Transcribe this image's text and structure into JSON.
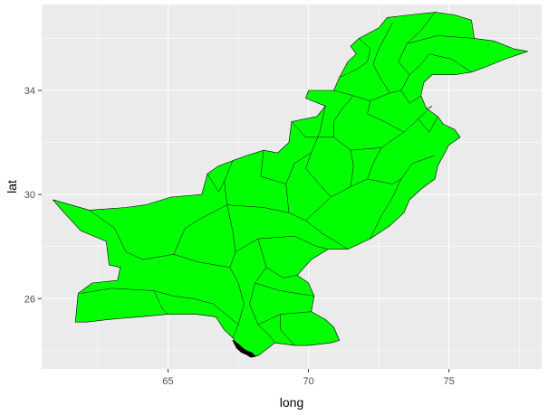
{
  "chart_data": {
    "type": "map",
    "geometry": "polygon (geom_polygon of Pakistan administrative regions)",
    "xlabel": "long",
    "ylabel": "lat",
    "xlim": [
      60.5,
      78.3
    ],
    "ylim": [
      23.3,
      37.3
    ],
    "x_ticks": [
      65,
      70,
      75
    ],
    "y_ticks": [
      26,
      30,
      34
    ],
    "x_tick_labels": [
      "65",
      "70",
      "75"
    ],
    "y_tick_labels": [
      "26",
      "30",
      "34"
    ],
    "grid": true,
    "panel_background": "#ebebeb",
    "fill_color": "#00ff00",
    "border_color": "#000000",
    "outline": [
      [
        60.9,
        29.8
      ],
      [
        62.2,
        29.4
      ],
      [
        63.5,
        29.5
      ],
      [
        64.2,
        29.6
      ],
      [
        65.1,
        29.9
      ],
      [
        66.2,
        30.0
      ],
      [
        66.4,
        30.8
      ],
      [
        66.8,
        31.1
      ],
      [
        67.3,
        31.3
      ],
      [
        67.8,
        31.5
      ],
      [
        68.4,
        31.7
      ],
      [
        68.9,
        31.6
      ],
      [
        69.3,
        32.0
      ],
      [
        69.4,
        32.8
      ],
      [
        70.3,
        33.0
      ],
      [
        70.6,
        33.4
      ],
      [
        69.9,
        33.7
      ],
      [
        70.0,
        34.0
      ],
      [
        70.9,
        34.0
      ],
      [
        71.1,
        34.5
      ],
      [
        71.4,
        35.1
      ],
      [
        71.7,
        35.4
      ],
      [
        71.5,
        35.7
      ],
      [
        71.8,
        36.0
      ],
      [
        72.5,
        36.4
      ],
      [
        72.8,
        36.8
      ],
      [
        73.6,
        36.9
      ],
      [
        74.5,
        37.0
      ],
      [
        75.2,
        36.9
      ],
      [
        75.8,
        36.7
      ],
      [
        75.9,
        36.0
      ],
      [
        76.6,
        35.9
      ],
      [
        77.3,
        35.6
      ],
      [
        77.8,
        35.5
      ],
      [
        77.0,
        35.2
      ],
      [
        76.3,
        34.9
      ],
      [
        75.8,
        34.7
      ],
      [
        75.2,
        34.6
      ],
      [
        74.4,
        34.6
      ],
      [
        74.1,
        34.3
      ],
      [
        74.0,
        33.8
      ],
      [
        74.2,
        33.3
      ],
      [
        74.6,
        33.0
      ],
      [
        74.8,
        32.7
      ],
      [
        75.2,
        32.5
      ],
      [
        75.4,
        32.2
      ],
      [
        75.0,
        31.9
      ],
      [
        74.8,
        31.5
      ],
      [
        74.6,
        31.1
      ],
      [
        74.5,
        30.6
      ],
      [
        74.0,
        30.2
      ],
      [
        73.6,
        29.8
      ],
      [
        73.4,
        29.3
      ],
      [
        72.9,
        28.8
      ],
      [
        72.2,
        28.3
      ],
      [
        71.4,
        27.9
      ],
      [
        70.7,
        27.9
      ],
      [
        70.1,
        27.5
      ],
      [
        69.6,
        26.9
      ],
      [
        70.0,
        26.6
      ],
      [
        70.2,
        26.1
      ],
      [
        70.1,
        25.5
      ],
      [
        70.6,
        25.2
      ],
      [
        70.9,
        24.9
      ],
      [
        71.1,
        24.4
      ],
      [
        70.8,
        24.3
      ],
      [
        70.0,
        24.2
      ],
      [
        69.5,
        24.2
      ],
      [
        68.8,
        24.3
      ],
      [
        68.2,
        23.8
      ],
      [
        67.9,
        23.8
      ],
      [
        67.6,
        24.0
      ],
      [
        67.3,
        24.5
      ],
      [
        67.0,
        24.8
      ],
      [
        66.7,
        25.3
      ],
      [
        66.0,
        25.4
      ],
      [
        65.0,
        25.4
      ],
      [
        64.0,
        25.3
      ],
      [
        62.9,
        25.2
      ],
      [
        62.1,
        25.1
      ],
      [
        61.7,
        25.1
      ],
      [
        61.8,
        26.2
      ],
      [
        62.3,
        26.6
      ],
      [
        63.2,
        26.7
      ],
      [
        63.3,
        27.2
      ],
      [
        62.9,
        27.3
      ],
      [
        62.8,
        28.2
      ],
      [
        61.9,
        28.6
      ],
      [
        61.3,
        29.3
      ],
      [
        60.9,
        29.8
      ]
    ],
    "coast_detail": [
      [
        67.3,
        24.4
      ],
      [
        67.45,
        24.1
      ],
      [
        67.6,
        23.95
      ],
      [
        67.8,
        23.85
      ],
      [
        67.95,
        23.75
      ],
      [
        68.1,
        23.78
      ],
      [
        68.0,
        23.9
      ],
      [
        67.7,
        24.05
      ],
      [
        67.5,
        24.25
      ],
      [
        67.3,
        24.4
      ]
    ],
    "internal_borders": [
      [
        [
          67.3,
          31.3
        ],
        [
          67.0,
          30.5
        ],
        [
          67.1,
          29.6
        ],
        [
          67.3,
          28.6
        ],
        [
          67.4,
          27.8
        ],
        [
          67.2,
          27.2
        ],
        [
          67.5,
          26.6
        ],
        [
          67.7,
          25.8
        ],
        [
          67.5,
          25.0
        ],
        [
          67.3,
          24.5
        ]
      ],
      [
        [
          67.4,
          27.8
        ],
        [
          68.2,
          28.3
        ],
        [
          69.5,
          28.4
        ],
        [
          70.3,
          28.0
        ],
        [
          70.7,
          27.9
        ]
      ],
      [
        [
          67.1,
          29.6
        ],
        [
          68.4,
          29.5
        ],
        [
          69.3,
          29.3
        ],
        [
          69.9,
          29.0
        ],
        [
          70.5,
          28.5
        ],
        [
          71.4,
          27.9
        ]
      ],
      [
        [
          69.3,
          29.3
        ],
        [
          69.2,
          30.4
        ],
        [
          69.5,
          31.2
        ],
        [
          70.1,
          31.6
        ],
        [
          70.4,
          32.4
        ],
        [
          70.6,
          33.4
        ]
      ],
      [
        [
          69.4,
          32.8
        ],
        [
          69.9,
          32.2
        ],
        [
          70.9,
          32.2
        ],
        [
          71.5,
          31.7
        ],
        [
          72.6,
          31.8
        ],
        [
          73.4,
          32.4
        ],
        [
          73.9,
          32.9
        ],
        [
          74.4,
          33.4
        ],
        [
          74.2,
          33.3
        ]
      ],
      [
        [
          70.9,
          34.0
        ],
        [
          71.6,
          33.8
        ],
        [
          72.2,
          33.6
        ],
        [
          72.9,
          33.9
        ],
        [
          73.3,
          34.0
        ],
        [
          73.6,
          34.6
        ],
        [
          74.0,
          35.0
        ],
        [
          74.3,
          35.4
        ],
        [
          75.1,
          35.2
        ],
        [
          75.8,
          34.7
        ]
      ],
      [
        [
          72.2,
          28.3
        ],
        [
          72.6,
          29.2
        ],
        [
          73.0,
          29.9
        ],
        [
          73.3,
          30.6
        ],
        [
          73.7,
          31.2
        ],
        [
          74.5,
          31.5
        ]
      ],
      [
        [
          62.2,
          29.4
        ],
        [
          63.1,
          28.7
        ],
        [
          63.5,
          27.8
        ],
        [
          64.1,
          27.5
        ],
        [
          65.2,
          27.7
        ],
        [
          66.1,
          27.4
        ],
        [
          67.2,
          27.2
        ]
      ],
      [
        [
          61.9,
          26.2
        ],
        [
          63.0,
          26.4
        ],
        [
          64.5,
          26.3
        ],
        [
          65.2,
          26.1
        ],
        [
          65.9,
          26.0
        ],
        [
          66.6,
          25.8
        ],
        [
          67.5,
          25.0
        ]
      ],
      [
        [
          65.2,
          27.7
        ],
        [
          65.6,
          28.7
        ],
        [
          66.2,
          29.1
        ],
        [
          67.1,
          29.6
        ]
      ],
      [
        [
          64.5,
          26.3
        ],
        [
          64.8,
          25.6
        ],
        [
          65.0,
          25.4
        ]
      ],
      [
        [
          68.2,
          28.3
        ],
        [
          68.5,
          27.2
        ],
        [
          68.1,
          26.6
        ],
        [
          67.9,
          25.8
        ],
        [
          68.2,
          25.0
        ],
        [
          68.6,
          24.6
        ],
        [
          68.8,
          24.3
        ]
      ],
      [
        [
          68.5,
          27.2
        ],
        [
          69.1,
          26.8
        ],
        [
          69.6,
          26.9
        ]
      ],
      [
        [
          68.1,
          26.6
        ],
        [
          69.0,
          26.3
        ],
        [
          70.2,
          26.1
        ]
      ],
      [
        [
          68.2,
          25.0
        ],
        [
          69.0,
          25.4
        ],
        [
          70.1,
          25.5
        ]
      ],
      [
        [
          69.0,
          25.4
        ],
        [
          69.0,
          24.8
        ],
        [
          69.5,
          24.2
        ]
      ],
      [
        [
          69.9,
          29.0
        ],
        [
          70.8,
          29.9
        ],
        [
          71.5,
          30.3
        ],
        [
          72.1,
          30.6
        ],
        [
          73.0,
          30.4
        ],
        [
          73.3,
          30.6
        ]
      ],
      [
        [
          71.5,
          30.3
        ],
        [
          71.6,
          31.1
        ],
        [
          71.5,
          31.7
        ]
      ],
      [
        [
          72.1,
          30.6
        ],
        [
          72.3,
          31.2
        ],
        [
          72.6,
          31.8
        ]
      ],
      [
        [
          70.8,
          29.9
        ],
        [
          70.3,
          30.5
        ],
        [
          69.9,
          31.0
        ],
        [
          70.1,
          31.6
        ]
      ],
      [
        [
          72.9,
          33.9
        ],
        [
          72.6,
          34.4
        ],
        [
          72.3,
          35.0
        ],
        [
          72.5,
          35.6
        ],
        [
          72.8,
          36.2
        ],
        [
          73.0,
          36.6
        ]
      ],
      [
        [
          71.8,
          36.0
        ],
        [
          72.2,
          35.6
        ],
        [
          72.1,
          35.1
        ],
        [
          71.7,
          34.8
        ],
        [
          71.1,
          34.5
        ]
      ],
      [
        [
          73.6,
          34.6
        ],
        [
          73.2,
          35.1
        ],
        [
          73.5,
          35.8
        ],
        [
          74.0,
          36.3
        ],
        [
          74.5,
          37.0
        ]
      ],
      [
        [
          73.5,
          35.8
        ],
        [
          74.6,
          36.1
        ],
        [
          75.9,
          36.0
        ]
      ],
      [
        [
          72.2,
          33.6
        ],
        [
          72.1,
          33.1
        ],
        [
          72.7,
          32.8
        ],
        [
          73.4,
          32.4
        ]
      ],
      [
        [
          71.6,
          33.8
        ],
        [
          71.2,
          33.3
        ],
        [
          70.9,
          32.8
        ],
        [
          70.9,
          32.2
        ]
      ],
      [
        [
          66.4,
          30.8
        ],
        [
          66.8,
          30.1
        ],
        [
          67.0,
          30.5
        ]
      ],
      [
        [
          68.4,
          31.7
        ],
        [
          68.3,
          30.7
        ],
        [
          69.2,
          30.4
        ]
      ],
      [
        [
          73.9,
          32.9
        ],
        [
          74.3,
          32.4
        ],
        [
          74.6,
          33.0
        ]
      ],
      [
        [
          74.0,
          33.8
        ],
        [
          73.6,
          33.5
        ],
        [
          73.3,
          34.0
        ]
      ]
    ]
  }
}
